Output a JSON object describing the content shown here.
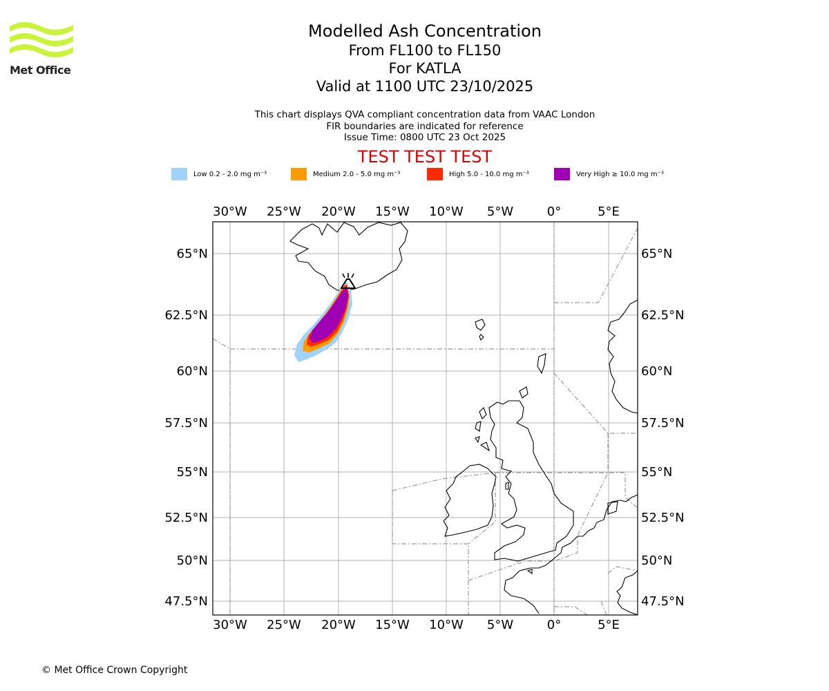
{
  "brand": {
    "name": "Met Office"
  },
  "title": {
    "line1": "Modelled Ash Concentration",
    "line2": "From FL100 to FL150",
    "line3": "For KATLA",
    "line4": "Valid at 1100 UTC 23/10/2025"
  },
  "subtitle": {
    "line1": "This chart displays QVA compliant concentration data from VAAC London",
    "line2": "FIR boundaries are indicated for reference",
    "line3": "Issue Time: 0800 UTC 23 Oct 2025"
  },
  "test_banner": "TEST TEST TEST",
  "legend": [
    {
      "label": "Low 0.2 - 2.0 mg m⁻³",
      "color": "#9fd3fb"
    },
    {
      "label": "Medium 2.0 - 5.0 mg m⁻³",
      "color": "#ff9a00"
    },
    {
      "label": "High 5.0 - 10.0 mg m⁻³",
      "color": "#ff2a00"
    },
    {
      "label": "Very High ≥ 10.0 mg m⁻³",
      "color": "#a000b4"
    }
  ],
  "map": {
    "lon_range": [
      -31.6,
      7.6
    ],
    "lat_range": [
      46.8,
      66.4
    ],
    "lon_ticks": [
      {
        "value": -30,
        "label": "30°W"
      },
      {
        "value": -25,
        "label": "25°W"
      },
      {
        "value": -20,
        "label": "20°W"
      },
      {
        "value": -15,
        "label": "15°W"
      },
      {
        "value": -10,
        "label": "10°W"
      },
      {
        "value": -5,
        "label": "5°W"
      },
      {
        "value": 0,
        "label": "0°"
      },
      {
        "value": 5,
        "label": "5°E"
      }
    ],
    "lat_ticks": [
      {
        "value": 65,
        "label": "65°N"
      },
      {
        "value": 62.5,
        "label": "62.5°N"
      },
      {
        "value": 60,
        "label": "60°N"
      },
      {
        "value": 57.5,
        "label": "57.5°N"
      },
      {
        "value": 55,
        "label": "55°N"
      },
      {
        "value": 52.5,
        "label": "52.5°N"
      },
      {
        "value": 50,
        "label": "50°N"
      },
      {
        "value": 47.5,
        "label": "47.5°N"
      }
    ],
    "volcano": {
      "name": "KATLA",
      "lon": -19.05,
      "lat": 63.63,
      "icon": "volcano-icon"
    },
    "colors": {
      "grid": "#b0b0b0",
      "coast": "#000000",
      "fir": "#999999"
    }
  },
  "copyright": "© Met Office Crown Copyright"
}
